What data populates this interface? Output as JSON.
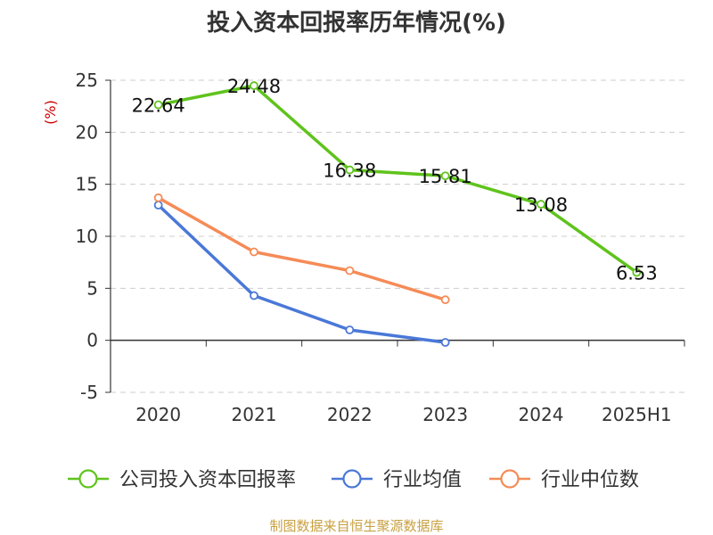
{
  "chart_data": {
    "type": "line",
    "title": "投入资本回报率历年情况(%)",
    "ylabel": "(%)",
    "categories": [
      "2020",
      "2021",
      "2022",
      "2023",
      "2024",
      "2025H1"
    ],
    "ylim": [
      -5,
      25
    ],
    "yticks": [
      -5,
      0,
      5,
      10,
      15,
      20,
      25
    ],
    "grid": true,
    "legend_position": "bottom",
    "series": [
      {
        "name": "公司投入资本回报率",
        "color": "#5fc31c",
        "values": [
          22.64,
          24.48,
          16.38,
          15.81,
          13.08,
          6.53
        ],
        "labels": [
          "22.64",
          "24.48",
          "16.38",
          "15.81",
          "13.08",
          "6.53"
        ]
      },
      {
        "name": "行业均值",
        "color": "#4a78d8",
        "values": [
          13.0,
          4.3,
          1.0,
          -0.2,
          null,
          null
        ]
      },
      {
        "name": "行业中位数",
        "color": "#f58b57",
        "values": [
          13.7,
          8.5,
          6.7,
          3.9,
          null,
          null
        ]
      }
    ]
  },
  "source": "制图数据来自恒生聚源数据库"
}
